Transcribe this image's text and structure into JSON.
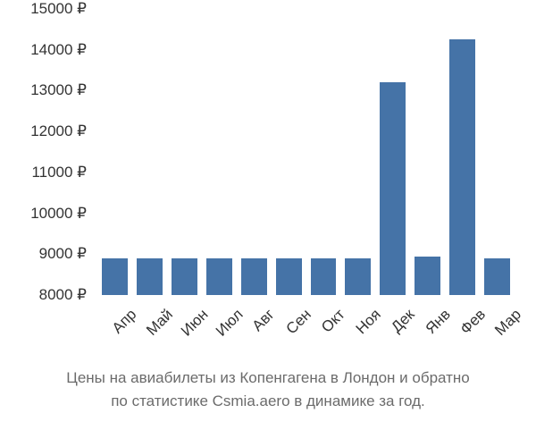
{
  "chart": {
    "type": "bar",
    "categories": [
      "Апр",
      "Май",
      "Июн",
      "Июл",
      "Авг",
      "Сен",
      "Окт",
      "Ноя",
      "Дек",
      "Янв",
      "Фев",
      "Мар"
    ],
    "values": [
      8900,
      8900,
      8900,
      8900,
      8900,
      8900,
      8900,
      8900,
      13200,
      8950,
      14250,
      8900
    ],
    "bar_color": "#4573a7",
    "background_color": "#ffffff",
    "ylim_min": 8000,
    "ylim_max": 15000,
    "ytick_step": 1000,
    "y_ticks": [
      "8000 ₽",
      "9000 ₽",
      "10000 ₽",
      "11000 ₽",
      "12000 ₽",
      "13000 ₽",
      "14000 ₽",
      "15000 ₽"
    ],
    "y_tick_values": [
      8000,
      9000,
      10000,
      11000,
      12000,
      13000,
      14000,
      15000
    ],
    "axis_fontsize": 17,
    "axis_color": "#333333",
    "bar_gap": 10
  },
  "caption": {
    "line1": "Цены на авиабилеты из Копенгагена в Лондон и обратно",
    "line2": "по статистике Csmia.aero в динамике за год.",
    "fontsize": 17,
    "color": "#6b6b6b"
  }
}
